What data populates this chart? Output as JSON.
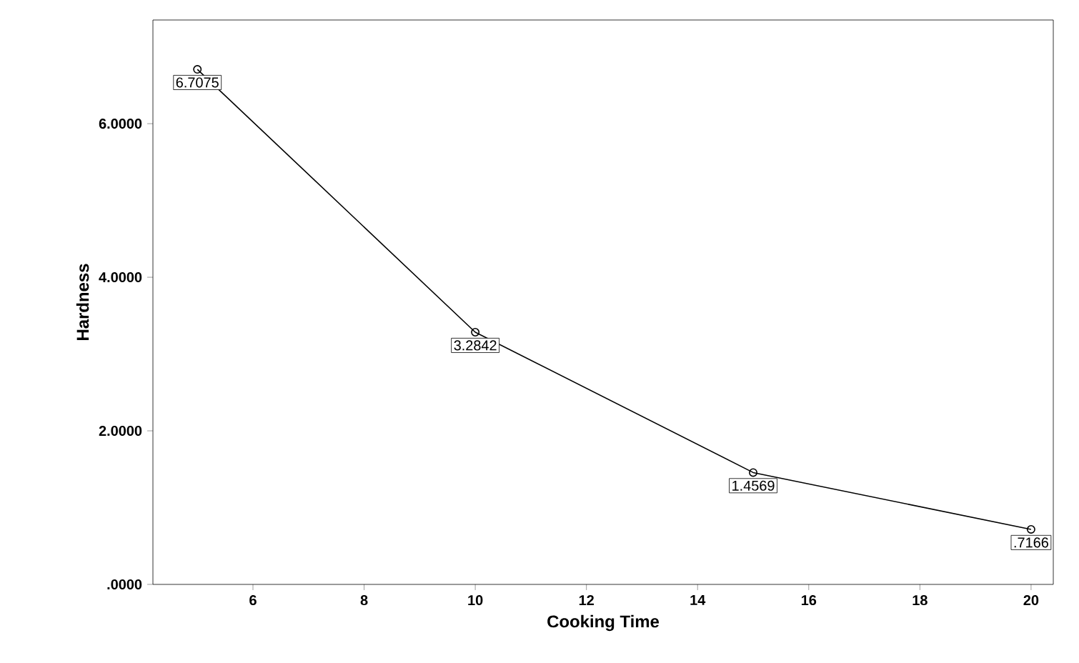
{
  "chart_data": {
    "type": "line",
    "xlabel": "Cooking Time",
    "ylabel": "Hardness",
    "x": [
      5,
      10,
      15,
      20
    ],
    "values": [
      6.7075,
      3.2842,
      1.4569,
      0.7166
    ],
    "value_labels": [
      "6.7075",
      "3.2842",
      "1.4569",
      ".7166"
    ],
    "color": "#000000",
    "marker": "circle",
    "line_style": "solid",
    "xlim": [
      4.2,
      20.4
    ],
    "xticks": [
      6,
      8,
      10,
      12,
      14,
      16,
      18,
      20
    ],
    "ylim": [
      0,
      7.35
    ],
    "yticks": [
      {
        "value": 0,
        "label": ".0000"
      },
      {
        "value": 2,
        "label": "2.0000"
      },
      {
        "value": 4,
        "label": "4.0000"
      },
      {
        "value": 6,
        "label": "6.0000"
      }
    ]
  }
}
